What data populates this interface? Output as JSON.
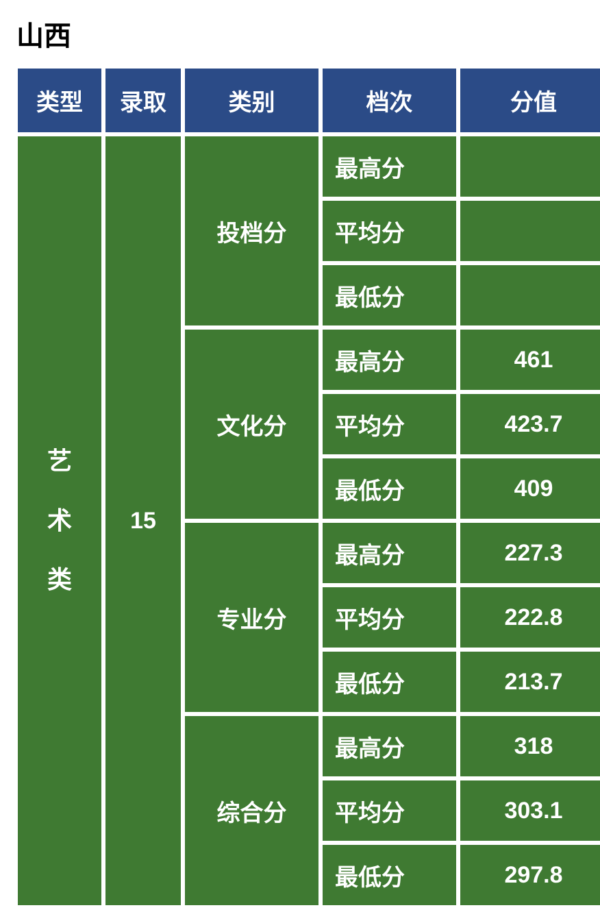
{
  "title": "山西",
  "headers": {
    "type": "类型",
    "admit": "录取",
    "category": "类别",
    "level": "档次",
    "score": "分值"
  },
  "row": {
    "type_chars": [
      "艺",
      "术",
      "类"
    ],
    "admit": "15",
    "groups": [
      {
        "category": "投档分",
        "levels": [
          {
            "label": "最高分",
            "value": ""
          },
          {
            "label": "平均分",
            "value": ""
          },
          {
            "label": "最低分",
            "value": ""
          }
        ]
      },
      {
        "category": "文化分",
        "levels": [
          {
            "label": "最高分",
            "value": "461"
          },
          {
            "label": "平均分",
            "value": "423.7"
          },
          {
            "label": "最低分",
            "value": "409"
          }
        ]
      },
      {
        "category": "专业分",
        "levels": [
          {
            "label": "最高分",
            "value": "227.3"
          },
          {
            "label": "平均分",
            "value": "222.8"
          },
          {
            "label": "最低分",
            "value": "213.7"
          }
        ]
      },
      {
        "category": "综合分",
        "levels": [
          {
            "label": "最高分",
            "value": "318"
          },
          {
            "label": "平均分",
            "value": "303.1"
          },
          {
            "label": "最低分",
            "value": "297.8"
          }
        ]
      }
    ]
  },
  "colors": {
    "header_bg": "#2b4b87",
    "cell_bg": "#3f7a32",
    "text": "#ffffff",
    "page_bg": "#ffffff",
    "title_color": "#000000"
  }
}
